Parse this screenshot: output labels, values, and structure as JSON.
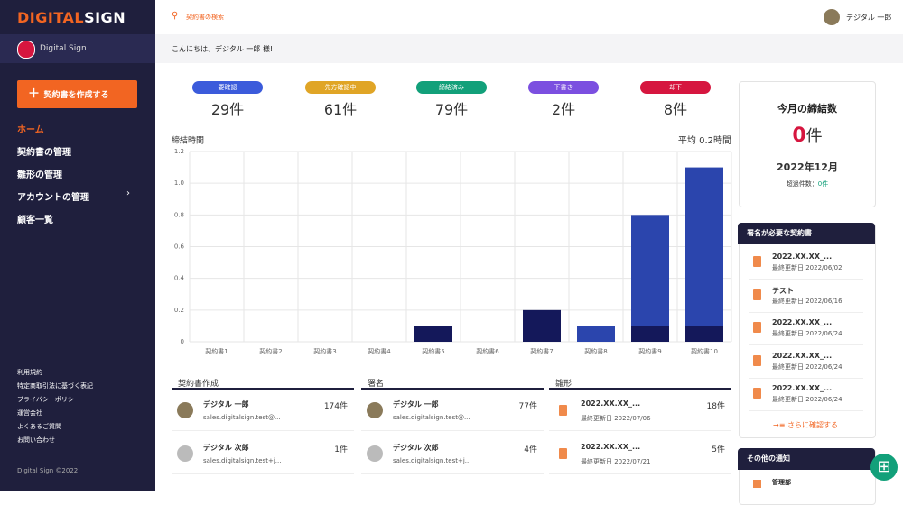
{
  "sidebar": {
    "logo_a": "DIGITAL",
    "logo_b": "SIGN",
    "account": "Digital Sign",
    "create_button": "契約書を作成する",
    "nav": [
      "ホーム",
      "契約書の管理",
      "雛形の管理",
      "アカウントの管理",
      "顧客一覧"
    ],
    "footer_links": [
      "利用規約",
      "特定商取引法に基づく表記",
      "プライバシーポリシー",
      "運営会社",
      "よくあるご質問",
      "お問い合わせ"
    ],
    "copyright": "Digital Sign ©2022"
  },
  "header": {
    "search": "契約書の検索",
    "user": "デジタル 一郎",
    "greeting": "こんにちは、デジタル 一郎 様!"
  },
  "status": [
    {
      "label": "要確認",
      "count": "29件",
      "color": "#3b5bdb"
    },
    {
      "label": "先方確認中",
      "count": "61件",
      "color": "#e0a526"
    },
    {
      "label": "締結済み",
      "count": "79件",
      "color": "#12a07a"
    },
    {
      "label": "下書き",
      "count": "2件",
      "color": "#7b4fe0"
    },
    {
      "label": "却下",
      "count": "8件",
      "color": "#d6163f"
    }
  ],
  "chart_data": {
    "type": "bar",
    "title": "締結時間",
    "annotation": "平均 0.2時間",
    "stacked": true,
    "grid": true,
    "categories": [
      "契約書1",
      "契約書2",
      "契約書3",
      "契約書4",
      "契約書5",
      "契約書6",
      "契約書7",
      "契約書8",
      "契約書9",
      "契約書10"
    ],
    "series": [
      {
        "color": "#14185a",
        "values": [
          0,
          0,
          0,
          0,
          0.1,
          0,
          0.2,
          0,
          0.1,
          0.1
        ]
      },
      {
        "color": "#2b45ad",
        "values": [
          0,
          0,
          0,
          0,
          0,
          0,
          0,
          0.1,
          0.7,
          1.0
        ]
      }
    ],
    "ylim": [
      0,
      1.2
    ],
    "yticks": [
      0,
      0.2,
      0.4,
      0.6,
      0.8,
      {
        "value": 1,
        "label": "1.0"
      },
      1.2
    ]
  },
  "lists": [
    {
      "title": "契約書作成",
      "rows": [
        {
          "name": "デジタル 一郎",
          "sub": "sales.digitalsign.test@...",
          "count": "174件"
        },
        {
          "name": "デジタル 次郎",
          "sub": "sales.digitalsign.test+j...",
          "count": "1件"
        }
      ]
    },
    {
      "title": "署名",
      "rows": [
        {
          "name": "デジタル 一郎",
          "sub": "sales.digitalsign.test@...",
          "count": "77件"
        },
        {
          "name": "デジタル 次郎",
          "sub": "sales.digitalsign.test+j...",
          "count": "4件"
        }
      ]
    },
    {
      "title": "雛形",
      "rows": [
        {
          "name": "2022.XX.XX_...",
          "sub": "最終更新日 2022/07/06",
          "count": "18件"
        },
        {
          "name": "2022.XX.XX_...",
          "sub": "最終更新日 2022/07/21",
          "count": "5件"
        }
      ]
    }
  ],
  "summary": {
    "title": "今月の締結数",
    "count": "0",
    "unit": "件",
    "month": "2022年12月",
    "overdue_label": "超過件数：",
    "overdue_count": "0件"
  },
  "sign_required": {
    "title": "署名が必要な契約書",
    "items": [
      {
        "name": "2022.XX.XX_...",
        "date": "最終更新日 2022/06/02"
      },
      {
        "name": "テスト",
        "date": "最終更新日 2022/06/16"
      },
      {
        "name": "2022.XX.XX_...",
        "date": "最終更新日 2022/06/24"
      },
      {
        "name": "2022.XX.XX_...",
        "date": "最終更新日 2022/06/24"
      },
      {
        "name": "2022.XX.XX_...",
        "date": "最終更新日 2022/06/24"
      }
    ],
    "more": "さらに確認する"
  },
  "other_notices": {
    "title": "その他の通知",
    "items": [
      "管理部"
    ]
  }
}
